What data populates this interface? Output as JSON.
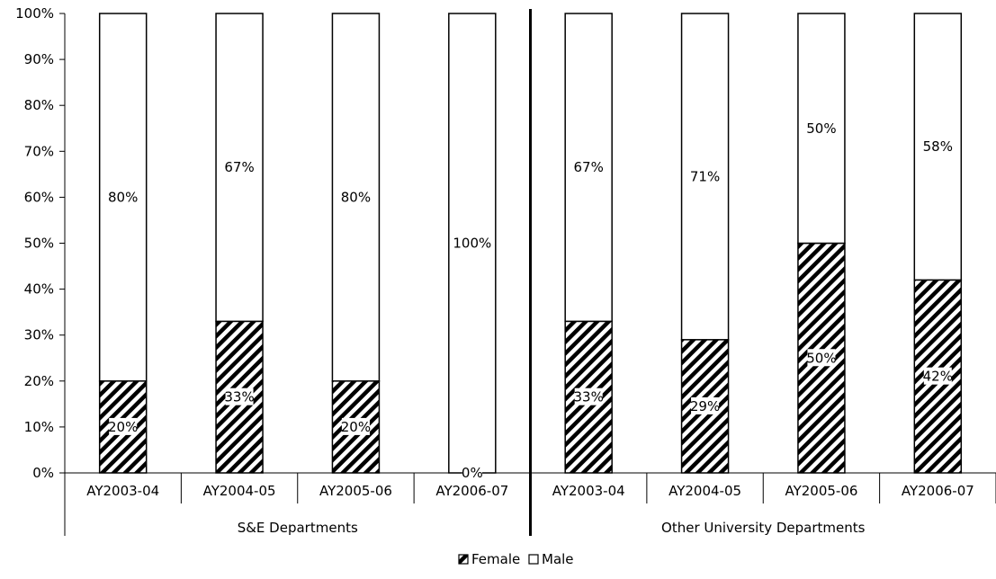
{
  "chart_data": {
    "type": "bar",
    "stacked": true,
    "percent_axis": true,
    "ylim": [
      0,
      100
    ],
    "yticks": [
      0,
      10,
      20,
      30,
      40,
      50,
      60,
      70,
      80,
      90,
      100
    ],
    "ytick_labels": [
      "0%",
      "10%",
      "20%",
      "30%",
      "40%",
      "50%",
      "60%",
      "70%",
      "80%",
      "90%",
      "100%"
    ],
    "categories": [
      "AY2003-04",
      "AY2004-05",
      "AY2005-06",
      "AY2006-07",
      "AY2003-04",
      "AY2004-05",
      "AY2005-06",
      "AY2006-07"
    ],
    "groups": [
      {
        "label": "S&E Departments",
        "start": 0,
        "count": 4
      },
      {
        "label": "Other University Departments",
        "start": 4,
        "count": 4
      }
    ],
    "series": [
      {
        "name": "Female",
        "fill": "hatch",
        "values": [
          20,
          33,
          20,
          0,
          33,
          29,
          50,
          42
        ],
        "labels": [
          "20%",
          "33%",
          "20%",
          "0%",
          "33%",
          "29%",
          "50%",
          "42%"
        ]
      },
      {
        "name": "Male",
        "fill": "white",
        "values": [
          80,
          67,
          80,
          100,
          67,
          71,
          50,
          58
        ],
        "labels": [
          "80%",
          "67%",
          "80%",
          "100%",
          "67%",
          "71%",
          "50%",
          "58%"
        ]
      }
    ],
    "legend": {
      "position": "bottom",
      "entries": [
        "Female",
        "Male"
      ]
    },
    "grid": false
  }
}
